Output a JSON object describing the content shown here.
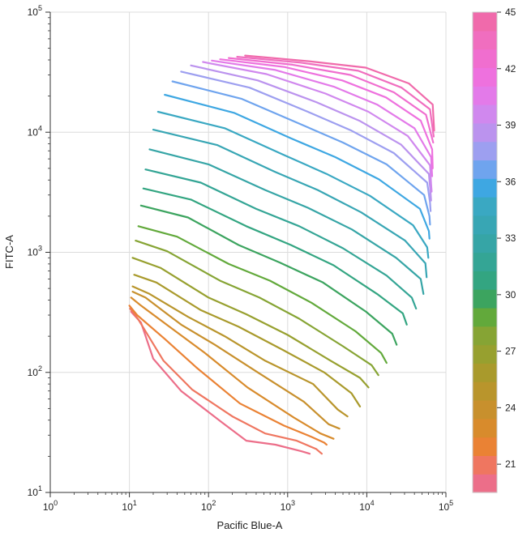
{
  "chart_data": {
    "type": "line",
    "title": "",
    "xlabel": "Pacific Blue-A",
    "ylabel": "FITC-A",
    "xscale": "log",
    "yscale": "log",
    "xlim": [
      1,
      100000
    ],
    "ylim": [
      10,
      100000
    ],
    "x_ticks": [
      {
        "value": 1,
        "base": "10",
        "exp": "0"
      },
      {
        "value": 10,
        "base": "10",
        "exp": "1"
      },
      {
        "value": 100,
        "base": "10",
        "exp": "2"
      },
      {
        "value": 1000,
        "base": "10",
        "exp": "3"
      },
      {
        "value": 10000,
        "base": "10",
        "exp": "4"
      },
      {
        "value": 100000,
        "base": "10",
        "exp": "5"
      }
    ],
    "y_ticks": [
      {
        "value": 10,
        "base": "10",
        "exp": "1"
      },
      {
        "value": 100,
        "base": "10",
        "exp": "2"
      },
      {
        "value": 1000,
        "base": "10",
        "exp": "3"
      },
      {
        "value": 10000,
        "base": "10",
        "exp": "4"
      },
      {
        "value": 100000,
        "base": "10",
        "exp": "5"
      }
    ],
    "grid": true,
    "colorbar": {
      "min": 19.5,
      "max": 45,
      "tick_values": [
        21,
        24,
        27,
        30,
        33,
        36,
        39,
        42,
        45
      ],
      "tick_labels": [
        "21",
        "24",
        "27",
        "30",
        "33",
        "36",
        "39",
        "42",
        "45"
      ],
      "placement": "right"
    },
    "series": [
      {
        "level": 20,
        "color": "#ec6e89",
        "points": [
          [
            10.5,
            320
          ],
          [
            14,
            260
          ],
          [
            20,
            130
          ],
          [
            45,
            70
          ],
          [
            150,
            38
          ],
          [
            300,
            27
          ],
          [
            700,
            25
          ],
          [
            1500,
            22
          ],
          [
            1900,
            21
          ]
        ]
      },
      {
        "level": 21,
        "color": "#ef7660",
        "points": [
          [
            10.2,
            340
          ],
          [
            13,
            275
          ],
          [
            27,
            125
          ],
          [
            62,
            72
          ],
          [
            200,
            43
          ],
          [
            520,
            31
          ],
          [
            1300,
            27
          ],
          [
            2300,
            23
          ],
          [
            2700,
            21
          ]
        ]
      },
      {
        "level": 22,
        "color": "#ea8234",
        "points": [
          [
            10,
            360
          ],
          [
            12.5,
            300
          ],
          [
            28,
            190
          ],
          [
            70,
            110
          ],
          [
            250,
            55
          ],
          [
            900,
            36
          ],
          [
            2000,
            29
          ],
          [
            2900,
            26
          ],
          [
            3100,
            25
          ]
        ]
      },
      {
        "level": 23,
        "color": "#d88b2c",
        "points": [
          [
            10.5,
            420
          ],
          [
            14,
            360
          ],
          [
            35,
            230
          ],
          [
            90,
            145
          ],
          [
            310,
            75
          ],
          [
            1200,
            42
          ],
          [
            2600,
            31
          ],
          [
            3800,
            28
          ]
        ]
      },
      {
        "level": 24,
        "color": "#c8902d",
        "points": [
          [
            11,
            470
          ],
          [
            16,
            420
          ],
          [
            45,
            250
          ],
          [
            120,
            170
          ],
          [
            420,
            100
          ],
          [
            1600,
            57
          ],
          [
            3300,
            37
          ],
          [
            4500,
            34
          ]
        ]
      },
      {
        "level": 25,
        "color": "#b9952c",
        "points": [
          [
            11,
            520
          ],
          [
            18,
            450
          ],
          [
            55,
            290
          ],
          [
            160,
            200
          ],
          [
            520,
            125
          ],
          [
            2100,
            80
          ],
          [
            4300,
            49
          ],
          [
            5700,
            43
          ]
        ]
      },
      {
        "level": 26,
        "color": "#a99a2c",
        "points": [
          [
            11.5,
            650
          ],
          [
            22,
            560
          ],
          [
            80,
            330
          ],
          [
            240,
            240
          ],
          [
            850,
            155
          ],
          [
            2900,
            100
          ],
          [
            6400,
            67
          ],
          [
            8200,
            52
          ]
        ]
      },
      {
        "level": 27,
        "color": "#97a02f",
        "points": [
          [
            11,
            900
          ],
          [
            25,
            740
          ],
          [
            100,
            420
          ],
          [
            300,
            305
          ],
          [
            1000,
            205
          ],
          [
            3500,
            125
          ],
          [
            8200,
            90
          ],
          [
            10500,
            75
          ]
        ]
      },
      {
        "level": 28,
        "color": "#86a434",
        "points": [
          [
            12,
            1250
          ],
          [
            30,
            1020
          ],
          [
            140,
            580
          ],
          [
            440,
            420
          ],
          [
            1400,
            280
          ],
          [
            5000,
            165
          ],
          [
            11500,
            115
          ],
          [
            14000,
            95
          ]
        ]
      },
      {
        "level": 29,
        "color": "#62a93b",
        "points": [
          [
            13,
            1650
          ],
          [
            40,
            1350
          ],
          [
            180,
            800
          ],
          [
            600,
            580
          ],
          [
            2000,
            380
          ],
          [
            7200,
            220
          ],
          [
            15200,
            145
          ],
          [
            17800,
            120
          ]
        ]
      },
      {
        "level": 30,
        "color": "#3ca45f",
        "points": [
          [
            14,
            2450
          ],
          [
            55,
            1950
          ],
          [
            240,
            1150
          ],
          [
            800,
            820
          ],
          [
            2800,
            560
          ],
          [
            9800,
            320
          ],
          [
            21000,
            210
          ],
          [
            23800,
            170
          ]
        ]
      },
      {
        "level": 31,
        "color": "#33a581",
        "points": [
          [
            15,
            3400
          ],
          [
            60,
            2750
          ],
          [
            300,
            1650
          ],
          [
            1100,
            1150
          ],
          [
            3800,
            780
          ],
          [
            13500,
            450
          ],
          [
            28500,
            310
          ],
          [
            32000,
            250
          ]
        ]
      },
      {
        "level": 32,
        "color": "#34a595",
        "points": [
          [
            16,
            4900
          ],
          [
            80,
            3800
          ],
          [
            400,
            2300
          ],
          [
            1400,
            1650
          ],
          [
            5000,
            1080
          ],
          [
            17800,
            640
          ],
          [
            37000,
            420
          ],
          [
            42000,
            340
          ]
        ]
      },
      {
        "level": 33,
        "color": "#36a5a6",
        "points": [
          [
            18,
            7200
          ],
          [
            100,
            5400
          ],
          [
            520,
            3300
          ],
          [
            1800,
            2350
          ],
          [
            6500,
            1550
          ],
          [
            23500,
            900
          ],
          [
            48000,
            600
          ],
          [
            52000,
            450
          ]
        ]
      },
      {
        "level": 34,
        "color": "#38a6b4",
        "points": [
          [
            20,
            10500
          ],
          [
            130,
            7800
          ],
          [
            680,
            4700
          ],
          [
            2400,
            3300
          ],
          [
            8500,
            2150
          ],
          [
            30500,
            1250
          ],
          [
            55000,
            810
          ],
          [
            57000,
            620
          ]
        ]
      },
      {
        "level": 35,
        "color": "#3aa8c2",
        "points": [
          [
            23,
            14800
          ],
          [
            160,
            10800
          ],
          [
            880,
            6500
          ],
          [
            3100,
            4500
          ],
          [
            11000,
            2950
          ],
          [
            38500,
            1680
          ],
          [
            58000,
            1100
          ],
          [
            60000,
            900
          ]
        ]
      },
      {
        "level": 36,
        "color": "#3ea7e2",
        "points": [
          [
            28,
            20500
          ],
          [
            210,
            14500
          ],
          [
            1100,
            8900
          ],
          [
            4000,
            6200
          ],
          [
            14200,
            4050
          ],
          [
            47000,
            2300
          ],
          [
            61000,
            1500
          ],
          [
            62000,
            1300
          ]
        ]
      },
      {
        "level": 37,
        "color": "#6fa4ee",
        "points": [
          [
            35,
            26500
          ],
          [
            260,
            19000
          ],
          [
            1400,
            11800
          ],
          [
            5000,
            8200
          ],
          [
            17800,
            5400
          ],
          [
            53000,
            3000
          ],
          [
            62000,
            2000
          ],
          [
            63000,
            1700
          ]
        ]
      },
      {
        "level": 38,
        "color": "#9d9ff0",
        "points": [
          [
            45,
            32000
          ],
          [
            330,
            23500
          ],
          [
            1800,
            14800
          ],
          [
            6400,
            10300
          ],
          [
            22000,
            6700
          ],
          [
            58000,
            3800
          ],
          [
            63000,
            2600
          ],
          [
            64000,
            2200
          ]
        ]
      },
      {
        "level": 39,
        "color": "#bb93ee",
        "points": [
          [
            60,
            36000
          ],
          [
            420,
            27000
          ],
          [
            2300,
            17800
          ],
          [
            8200,
            12400
          ],
          [
            27000,
            7900
          ],
          [
            61000,
            4500
          ],
          [
            64000,
            3100
          ],
          [
            65000,
            2700
          ]
        ]
      },
      {
        "level": 40,
        "color": "#d088ee",
        "points": [
          [
            85,
            38500
          ],
          [
            540,
            30500
          ],
          [
            3000,
            21000
          ],
          [
            10500,
            14800
          ],
          [
            33000,
            9300
          ],
          [
            63000,
            5300
          ],
          [
            65000,
            3700
          ],
          [
            66000,
            3200
          ]
        ]
      },
      {
        "level": 41,
        "color": "#e37ae9",
        "points": [
          [
            110,
            39500
          ],
          [
            700,
            33000
          ],
          [
            3800,
            24000
          ],
          [
            13500,
            17000
          ],
          [
            40000,
            10800
          ],
          [
            65000,
            6200
          ],
          [
            67000,
            4300
          ]
        ]
      },
      {
        "level": 42,
        "color": "#ee71de",
        "points": [
          [
            140,
            40500
          ],
          [
            900,
            35000
          ],
          [
            4900,
            27000
          ],
          [
            17500,
            19500
          ],
          [
            48000,
            12500
          ],
          [
            67000,
            7200
          ],
          [
            68000,
            5000
          ]
        ]
      },
      {
        "level": 43,
        "color": "#f06ecf",
        "points": [
          [
            180,
            41500
          ],
          [
            1150,
            36500
          ],
          [
            6200,
            30000
          ],
          [
            22000,
            21500
          ],
          [
            56000,
            14000
          ],
          [
            69000,
            8200
          ]
        ]
      },
      {
        "level": 44,
        "color": "#f06ebf",
        "points": [
          [
            230,
            42500
          ],
          [
            1450,
            38000
          ],
          [
            7800,
            32500
          ],
          [
            27500,
            23500
          ],
          [
            63000,
            15500
          ],
          [
            70000,
            9200
          ]
        ]
      },
      {
        "level": 45,
        "color": "#f06aab",
        "points": [
          [
            290,
            43500
          ],
          [
            1850,
            39000
          ],
          [
            9700,
            34500
          ],
          [
            34000,
            25500
          ],
          [
            68000,
            17000
          ],
          [
            71000,
            10300
          ]
        ]
      }
    ]
  }
}
